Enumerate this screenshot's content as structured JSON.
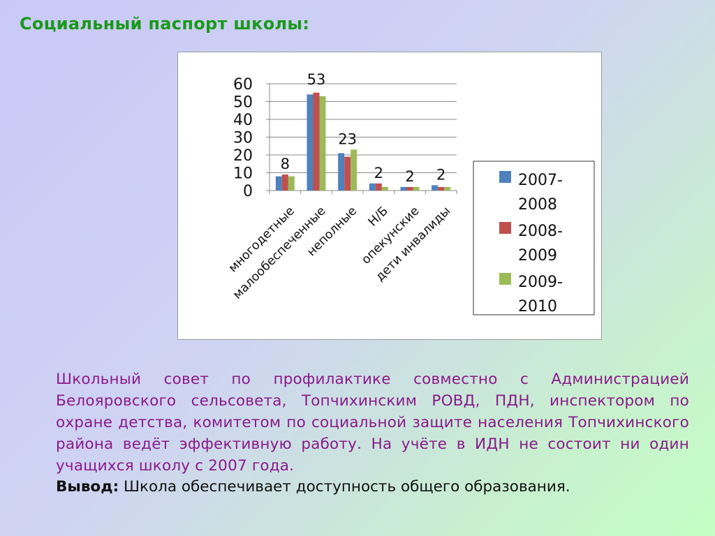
{
  "slide": {
    "title": "Социальный паспорт школы:",
    "paragraph": "Школьный совет по профилактике  совместно с Администрацией Белоярovского сельсовета, Топчихинским  РОВД, ПДН, инспектором по охране детства, комитетом по социальной защите населения Топчихинского района ведёт  эффективную работу. На учёте в ИДН не состоит ни один учащихся школу с 2007 года.",
    "conclusion_label": "Вывод:",
    "conclusion_text": " Школа обеспечивает доступность общего образования."
  },
  "chart_data": {
    "type": "bar",
    "categories": [
      "многодетные",
      "малообеспеченные",
      "неполные",
      "Н/Б",
      "опекунские",
      "дети инвалиды"
    ],
    "series": [
      {
        "name": "2007-2008",
        "color": "#4f81bd",
        "values": [
          8,
          54,
          21,
          4,
          2,
          3
        ]
      },
      {
        "name": "2008-2009",
        "color": "#c0504d",
        "values": [
          9,
          55,
          19,
          4,
          2,
          2
        ]
      },
      {
        "name": "2009-2010",
        "color": "#9bbb59",
        "values": [
          8,
          53,
          23,
          2,
          2,
          2
        ]
      }
    ],
    "data_labels": [
      "8",
      "53",
      "23",
      "2",
      "2",
      "2"
    ],
    "yticks": [
      "0",
      "10",
      "20",
      "30",
      "40",
      "50",
      "60"
    ],
    "ylim": [
      0,
      60
    ],
    "grid": true,
    "legend_position": "right",
    "title": "",
    "xlabel": "",
    "ylabel": ""
  }
}
